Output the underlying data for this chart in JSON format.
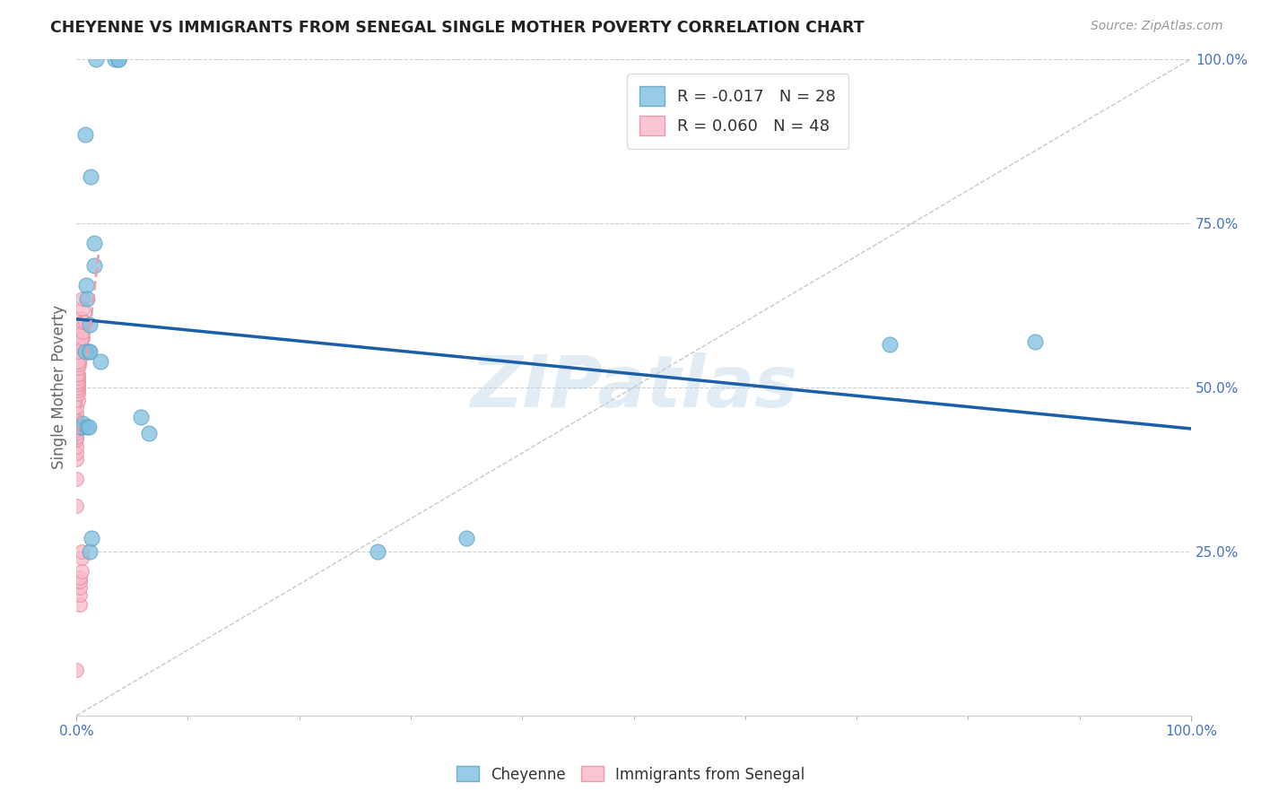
{
  "title": "CHEYENNE VS IMMIGRANTS FROM SENEGAL SINGLE MOTHER POVERTY CORRELATION CHART",
  "source": "Source: ZipAtlas.com",
  "ylabel": "Single Mother Poverty",
  "cheyenne_color": "#7fbfdf",
  "cheyenne_edge": "#5a9fc0",
  "senegal_color": "#f9b8c8",
  "senegal_edge": "#e88aa0",
  "cheyenne_R": -0.017,
  "cheyenne_N": 28,
  "senegal_R": 0.06,
  "senegal_N": 48,
  "cheyenne_x": [
    0.018,
    0.035,
    0.038,
    0.038,
    0.008,
    0.013,
    0.016,
    0.016,
    0.009,
    0.01,
    0.012,
    0.011,
    0.008,
    0.012,
    0.022,
    0.058,
    0.065,
    0.73,
    0.86,
    0.003,
    0.005,
    0.006,
    0.01,
    0.011,
    0.27,
    0.35,
    0.012,
    0.014
  ],
  "cheyenne_y": [
    1.0,
    1.0,
    1.0,
    1.0,
    0.885,
    0.82,
    0.72,
    0.685,
    0.655,
    0.635,
    0.595,
    0.555,
    0.555,
    0.555,
    0.54,
    0.455,
    0.43,
    0.565,
    0.57,
    0.44,
    0.44,
    0.445,
    0.44,
    0.44,
    0.25,
    0.27,
    0.25,
    0.27
  ],
  "senegal_x": [
    0.0,
    0.0,
    0.0,
    0.0,
    0.0,
    0.0,
    0.0,
    0.0,
    0.0,
    0.0,
    0.0,
    0.0,
    0.0,
    0.0,
    0.0,
    0.001,
    0.001,
    0.001,
    0.002,
    0.002,
    0.002,
    0.002,
    0.002,
    0.002,
    0.002,
    0.002,
    0.002,
    0.002,
    0.002,
    0.002,
    0.002,
    0.003,
    0.003,
    0.003,
    0.003,
    0.003,
    0.004,
    0.004,
    0.005,
    0.005,
    0.005,
    0.006,
    0.006,
    0.006,
    0.006,
    0.006,
    0.006,
    0.008
  ],
  "senegal_y": [
    0.07,
    0.32,
    0.36,
    0.39,
    0.4,
    0.41,
    0.42,
    0.425,
    0.43,
    0.435,
    0.44,
    0.445,
    0.45,
    0.46,
    0.47,
    0.5,
    0.505,
    0.51,
    0.48,
    0.49,
    0.495,
    0.5,
    0.505,
    0.51,
    0.515,
    0.52,
    0.53,
    0.535,
    0.54,
    0.555,
    0.57,
    0.17,
    0.185,
    0.195,
    0.205,
    0.21,
    0.59,
    0.605,
    0.22,
    0.24,
    0.25,
    0.56,
    0.575,
    0.585,
    0.6,
    0.62,
    0.635,
    0.6
  ],
  "xlim": [
    0.0,
    1.0
  ],
  "ylim": [
    0.0,
    1.0
  ],
  "watermark": "ZIPatlas",
  "background_color": "#ffffff",
  "grid_color": "#d0d0d0",
  "cheyenne_trend_color": "#1a5fa8",
  "senegal_trend_color": "#e8a0b0",
  "diag_color": "#c8c8c8",
  "legend_box_color": "#e8e8e8"
}
